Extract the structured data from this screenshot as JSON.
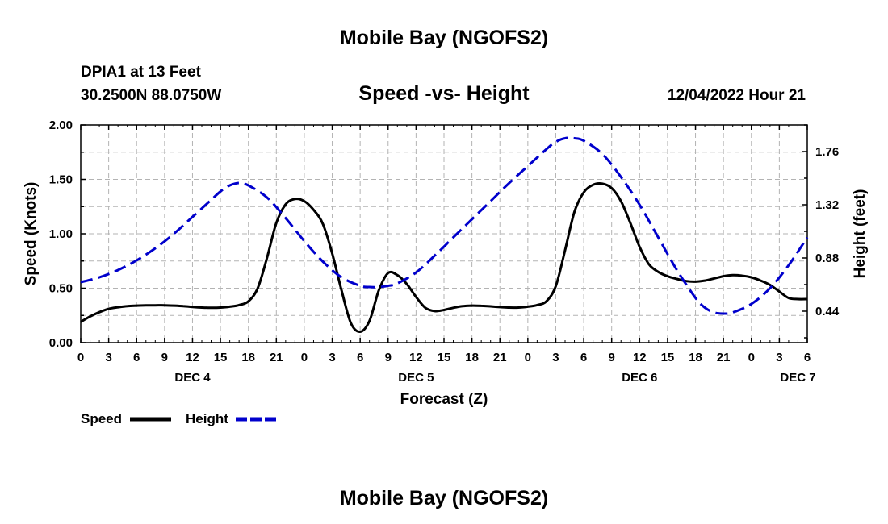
{
  "header": {
    "title": "Mobile Bay (NGOFS2)",
    "station": "DPIA1 at 13 Feet",
    "coords": "30.2500N  88.0750W",
    "timestamp": "12/04/2022 Hour 21",
    "footer_title": "Mobile Bay (NGOFS2)"
  },
  "chart_data": {
    "type": "line",
    "title": "Speed -vs- Height",
    "xlabel": "Forecast (Z)",
    "ylabel": "Speed (Knots)",
    "y2label": "Height (feet)",
    "xlim": [
      0,
      78
    ],
    "ylim": [
      0,
      2.0
    ],
    "y2lim": [
      0.18,
      1.98
    ],
    "grid": true,
    "x_unit": "hours from DEC 4 00Z",
    "x_ticks": [
      0,
      3,
      6,
      9,
      12,
      15,
      18,
      21,
      24,
      27,
      30,
      33,
      36,
      39,
      42,
      45,
      48,
      51,
      54,
      57,
      60,
      63,
      66,
      69,
      72,
      75,
      78
    ],
    "x_tick_labels": [
      "0",
      "3",
      "6",
      "9",
      "12",
      "15",
      "18",
      "21",
      "0",
      "3",
      "6",
      "9",
      "12",
      "15",
      "18",
      "21",
      "0",
      "3",
      "6",
      "9",
      "12",
      "15",
      "18",
      "21",
      "0",
      "3",
      "6"
    ],
    "date_labels": [
      {
        "label": "DEC 4",
        "x": 12
      },
      {
        "label": "DEC 5",
        "x": 36
      },
      {
        "label": "DEC 6",
        "x": 60
      },
      {
        "label": "DEC 7",
        "x": 77
      }
    ],
    "y_ticks": [
      0.0,
      0.5,
      1.0,
      1.5,
      2.0
    ],
    "y_tick_labels": [
      "0.00",
      "0.50",
      "1.00",
      "1.50",
      "2.00"
    ],
    "y2_ticks": [
      0.44,
      0.88,
      1.32,
      1.76
    ],
    "y2_tick_labels": [
      "0.44",
      "0.88",
      "1.32",
      "1.76"
    ],
    "series": [
      {
        "name": "Speed",
        "axis": "left",
        "color": "#000000",
        "style": "solid",
        "x": [
          0,
          1,
          2,
          3,
          4,
          5,
          6,
          7,
          8,
          9,
          10,
          11,
          12,
          13,
          14,
          15,
          16,
          17,
          18,
          19,
          20,
          21,
          22,
          23,
          24,
          25,
          26,
          27,
          28,
          29,
          30,
          31,
          32,
          33,
          34,
          35,
          36,
          37,
          38,
          39,
          40,
          41,
          42,
          43,
          44,
          45,
          46,
          47,
          48,
          49,
          50,
          51,
          52,
          53,
          54,
          55,
          56,
          57,
          58,
          59,
          60,
          61,
          62,
          63,
          64,
          65,
          66,
          67,
          68,
          69,
          70,
          71,
          72,
          73,
          74,
          75,
          76,
          77,
          78
        ],
        "values": [
          0.19,
          0.24,
          0.28,
          0.31,
          0.325,
          0.335,
          0.34,
          0.342,
          0.343,
          0.343,
          0.34,
          0.335,
          0.328,
          0.322,
          0.32,
          0.322,
          0.33,
          0.345,
          0.38,
          0.5,
          0.78,
          1.1,
          1.27,
          1.32,
          1.3,
          1.22,
          1.09,
          0.82,
          0.48,
          0.18,
          0.1,
          0.2,
          0.48,
          0.64,
          0.62,
          0.54,
          0.42,
          0.32,
          0.29,
          0.3,
          0.32,
          0.335,
          0.34,
          0.338,
          0.333,
          0.327,
          0.322,
          0.322,
          0.33,
          0.345,
          0.38,
          0.52,
          0.85,
          1.2,
          1.38,
          1.45,
          1.46,
          1.42,
          1.3,
          1.1,
          0.88,
          0.72,
          0.65,
          0.61,
          0.585,
          0.565,
          0.56,
          0.57,
          0.59,
          0.61,
          0.62,
          0.615,
          0.6,
          0.57,
          0.53,
          0.47,
          0.41,
          0.4,
          0.4
        ]
      },
      {
        "name": "Height",
        "axis": "right",
        "color": "#0000cc",
        "style": "dashed",
        "x": [
          0,
          2,
          4,
          6,
          8,
          10,
          12,
          14,
          15,
          16,
          17,
          18,
          20,
          22,
          24,
          26,
          28,
          30,
          31,
          32,
          33,
          34,
          36,
          38,
          40,
          42,
          44,
          46,
          48,
          50,
          51,
          52,
          53,
          54,
          56,
          58,
          60,
          62,
          64,
          66,
          67,
          68,
          69,
          70,
          72,
          74,
          76,
          78
        ],
        "values": [
          0.68,
          0.72,
          0.78,
          0.86,
          0.96,
          1.08,
          1.22,
          1.36,
          1.43,
          1.48,
          1.5,
          1.48,
          1.38,
          1.21,
          1.02,
          0.85,
          0.72,
          0.65,
          0.64,
          0.64,
          0.65,
          0.67,
          0.76,
          0.9,
          1.05,
          1.2,
          1.35,
          1.5,
          1.64,
          1.78,
          1.84,
          1.87,
          1.87,
          1.85,
          1.74,
          1.55,
          1.32,
          1.05,
          0.78,
          0.55,
          0.47,
          0.43,
          0.42,
          0.43,
          0.5,
          0.63,
          0.82,
          1.05
        ]
      }
    ],
    "legend": [
      {
        "label": "Speed",
        "color": "#000000",
        "style": "solid"
      },
      {
        "label": "Height",
        "color": "#0000cc",
        "style": "dashed"
      }
    ],
    "legend_position": "bottom-left"
  }
}
